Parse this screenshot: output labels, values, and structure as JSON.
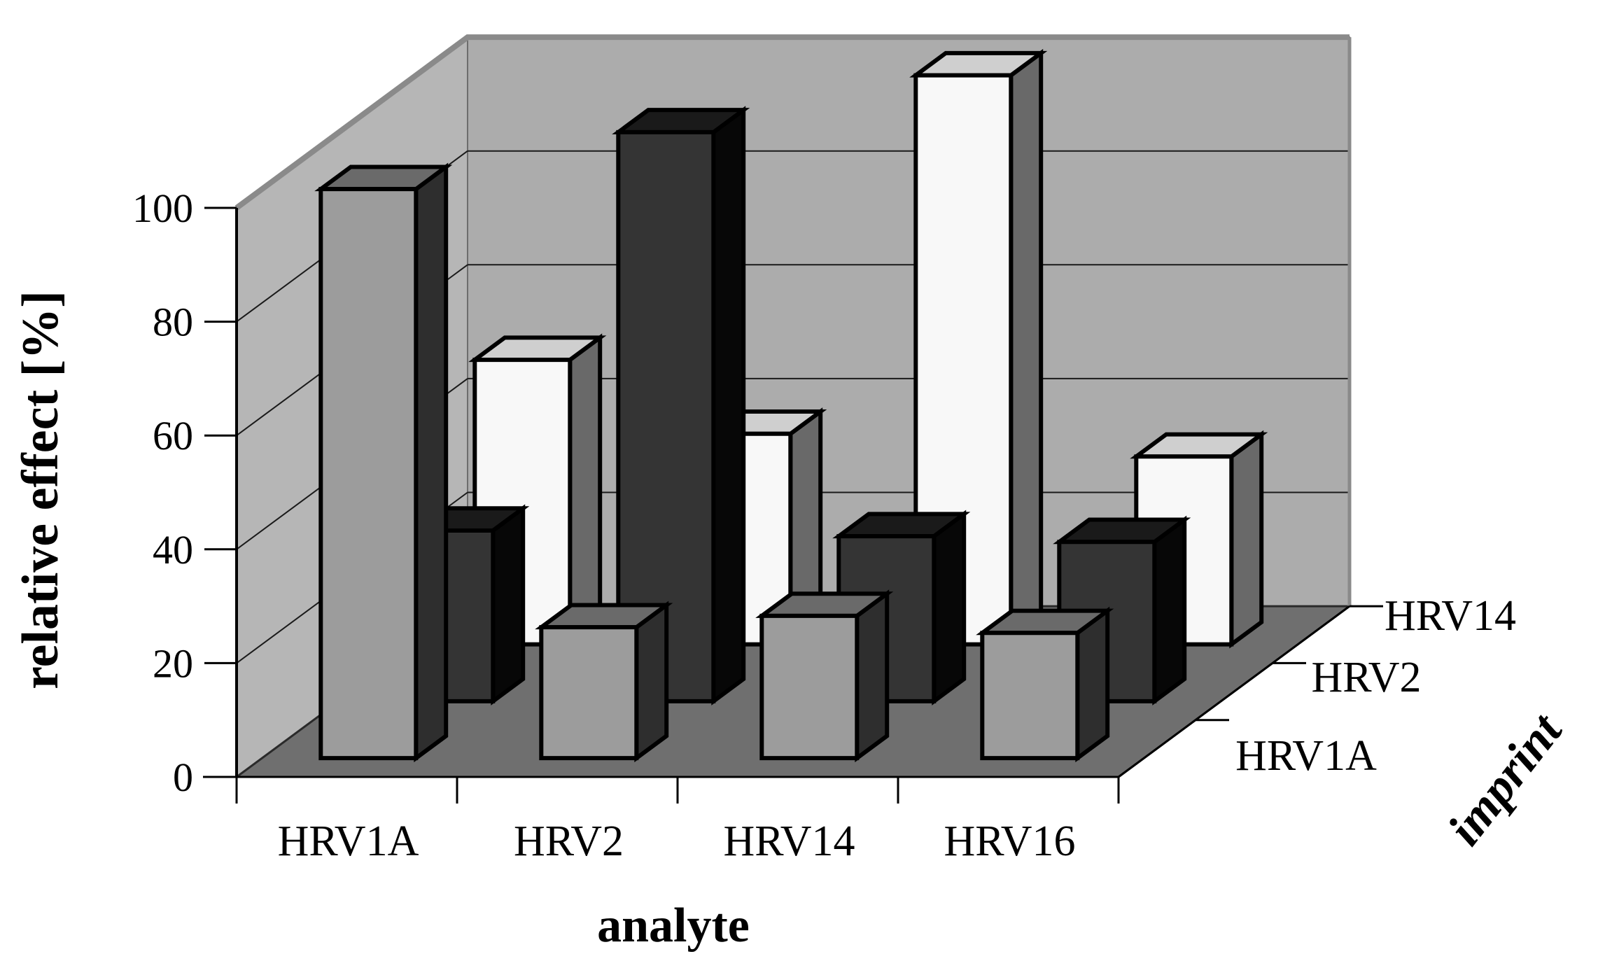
{
  "figure": {
    "background": "#ffffff",
    "value_axis": {
      "title": "relative effect [%]",
      "tick_labels": [
        "0",
        "20",
        "40",
        "60",
        "80",
        "100"
      ],
      "tick_values": [
        0,
        20,
        40,
        60,
        80,
        100
      ]
    },
    "category_axis": {
      "title": "analyte",
      "labels": [
        "HRV1A",
        "HRV2",
        "HRV14",
        "HRV16"
      ]
    },
    "depth_axis": {
      "title": "imprint",
      "labels": [
        "HRV1A",
        "HRV2",
        "HRV14"
      ]
    }
  },
  "chart_data": {
    "type": "bar",
    "projection": "3d-column",
    "title": "",
    "xlabel": "analyte",
    "ylabel": "relative effect [%]",
    "zlabel": "imprint",
    "ylim": [
      0,
      100
    ],
    "ytick_step": 20,
    "grid": true,
    "legend": "none",
    "categories": [
      "HRV1A",
      "HRV2",
      "HRV14",
      "HRV16"
    ],
    "series": [
      {
        "name": "HRV1A",
        "depth_row": "front",
        "values": [
          100,
          23,
          25,
          22
        ],
        "color": "#9c9c9c"
      },
      {
        "name": "HRV2",
        "depth_row": "middle",
        "values": [
          30,
          100,
          29,
          28
        ],
        "color": "#333333"
      },
      {
        "name": "HRV14",
        "depth_row": "back",
        "values": [
          50,
          37,
          100,
          33
        ],
        "color": "#f7f7f7"
      }
    ]
  },
  "style": {
    "wall_left": "#b6b6b6",
    "wall_back": "#acacac",
    "floor": "#6f6f6f",
    "wall_rim": "#8a8a8a",
    "gridline": "#1a1a1a",
    "outline": "#000000",
    "bar_faces": [
      {
        "front": "#9c9c9c",
        "side": "#2e2e2e",
        "top": "#6a6a6a"
      },
      {
        "front": "#343434",
        "side": "#070707",
        "top": "#1a1a1a"
      },
      {
        "front": "#f8f8f8",
        "side": "#696969",
        "top": "#cfcfcf"
      }
    ]
  }
}
